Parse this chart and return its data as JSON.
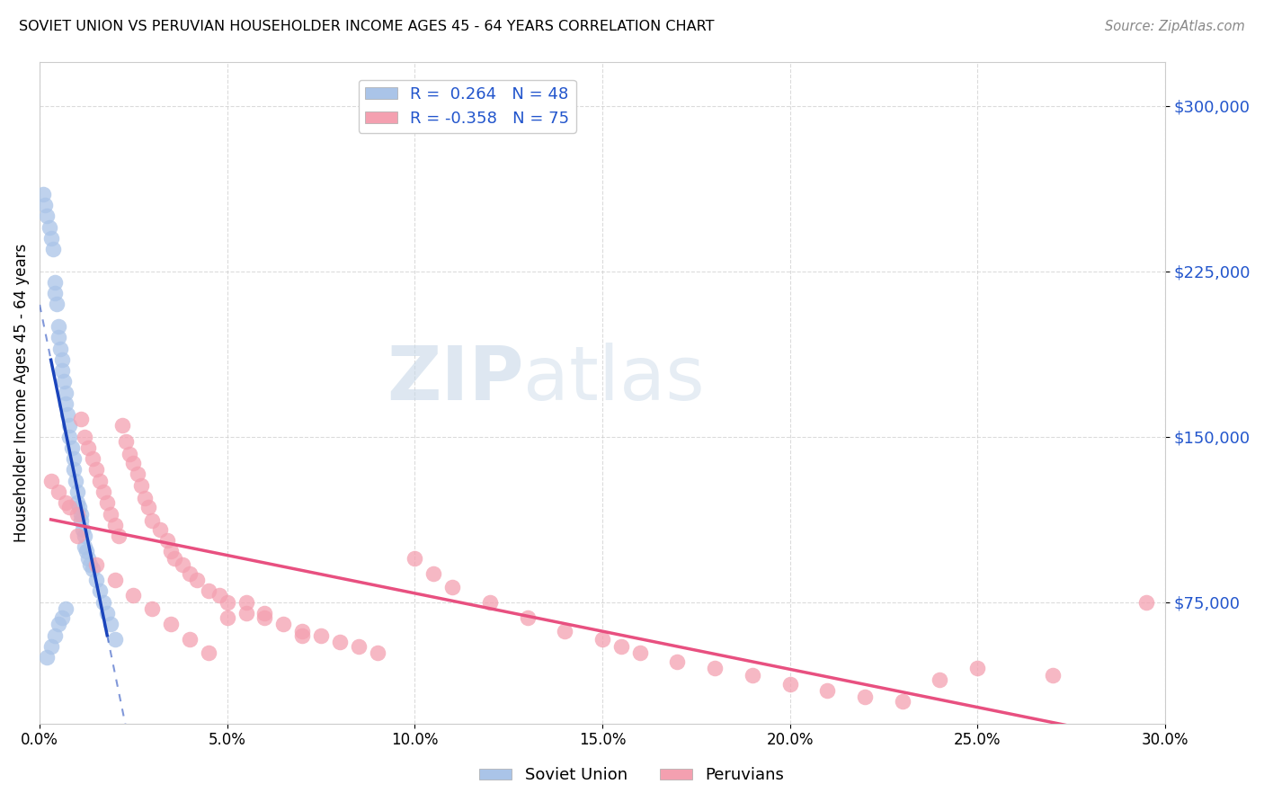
{
  "title": "SOVIET UNION VS PERUVIAN HOUSEHOLDER INCOME AGES 45 - 64 YEARS CORRELATION CHART",
  "source_text": "Source: ZipAtlas.com",
  "ylabel": "Householder Income Ages 45 - 64 years",
  "xlabel_ticks": [
    "0.0%",
    "5.0%",
    "10.0%",
    "15.0%",
    "20.0%",
    "25.0%",
    "30.0%"
  ],
  "xlabel_vals": [
    0.0,
    5.0,
    10.0,
    15.0,
    20.0,
    25.0,
    30.0
  ],
  "ylim": [
    20000,
    320000
  ],
  "xlim": [
    0.0,
    30.0
  ],
  "ytick_vals": [
    75000,
    150000,
    225000,
    300000
  ],
  "ytick_labels": [
    "$75,000",
    "$150,000",
    "$225,000",
    "$300,000"
  ],
  "grid_color": "#cccccc",
  "background_color": "#ffffff",
  "soviet_color": "#aac4e8",
  "peruvian_color": "#f4a0b0",
  "soviet_line_color": "#1a44bb",
  "peruvian_line_color": "#e85080",
  "soviet_R": 0.264,
  "soviet_N": 48,
  "peruvian_R": -0.358,
  "peruvian_N": 75,
  "legend_label_soviet": "Soviet Union",
  "legend_label_peruvian": "Peruvians",
  "watermark_zip": "ZIP",
  "watermark_atlas": "atlas",
  "soviet_scatter_x": [
    0.1,
    0.15,
    0.2,
    0.25,
    0.3,
    0.35,
    0.4,
    0.4,
    0.45,
    0.5,
    0.5,
    0.55,
    0.6,
    0.6,
    0.65,
    0.7,
    0.7,
    0.75,
    0.8,
    0.8,
    0.85,
    0.9,
    0.9,
    0.95,
    1.0,
    1.0,
    1.05,
    1.1,
    1.1,
    1.15,
    1.2,
    1.2,
    1.25,
    1.3,
    1.35,
    1.4,
    1.5,
    1.6,
    1.7,
    1.8,
    1.9,
    2.0,
    0.2,
    0.3,
    0.4,
    0.5,
    0.6,
    0.7
  ],
  "soviet_scatter_y": [
    260000,
    255000,
    250000,
    245000,
    240000,
    235000,
    215000,
    220000,
    210000,
    200000,
    195000,
    190000,
    185000,
    180000,
    175000,
    170000,
    165000,
    160000,
    155000,
    150000,
    145000,
    140000,
    135000,
    130000,
    125000,
    120000,
    118000,
    115000,
    112000,
    108000,
    105000,
    100000,
    98000,
    95000,
    92000,
    90000,
    85000,
    80000,
    75000,
    70000,
    65000,
    58000,
    50000,
    55000,
    60000,
    65000,
    68000,
    72000
  ],
  "peruvian_scatter_x": [
    0.3,
    0.5,
    0.7,
    0.8,
    1.0,
    1.1,
    1.2,
    1.3,
    1.4,
    1.5,
    1.6,
    1.7,
    1.8,
    1.9,
    2.0,
    2.1,
    2.2,
    2.3,
    2.4,
    2.5,
    2.6,
    2.7,
    2.8,
    2.9,
    3.0,
    3.2,
    3.4,
    3.5,
    3.6,
    3.8,
    4.0,
    4.2,
    4.5,
    4.8,
    5.0,
    5.5,
    6.0,
    6.5,
    7.0,
    7.5,
    8.0,
    8.5,
    9.0,
    10.0,
    10.5,
    11.0,
    12.0,
    13.0,
    14.0,
    15.0,
    15.5,
    16.0,
    17.0,
    18.0,
    19.0,
    20.0,
    21.0,
    22.0,
    23.0,
    24.0,
    25.0,
    27.0,
    29.5,
    1.0,
    1.5,
    2.0,
    2.5,
    3.0,
    3.5,
    4.0,
    4.5,
    5.0,
    5.5,
    6.0,
    7.0
  ],
  "peruvian_scatter_y": [
    130000,
    125000,
    120000,
    118000,
    115000,
    158000,
    150000,
    145000,
    140000,
    135000,
    130000,
    125000,
    120000,
    115000,
    110000,
    105000,
    155000,
    148000,
    142000,
    138000,
    133000,
    128000,
    122000,
    118000,
    112000,
    108000,
    103000,
    98000,
    95000,
    92000,
    88000,
    85000,
    80000,
    78000,
    75000,
    70000,
    68000,
    65000,
    62000,
    60000,
    57000,
    55000,
    52000,
    95000,
    88000,
    82000,
    75000,
    68000,
    62000,
    58000,
    55000,
    52000,
    48000,
    45000,
    42000,
    38000,
    35000,
    32000,
    30000,
    40000,
    45000,
    42000,
    75000,
    105000,
    92000,
    85000,
    78000,
    72000,
    65000,
    58000,
    52000,
    68000,
    75000,
    70000,
    60000
  ]
}
